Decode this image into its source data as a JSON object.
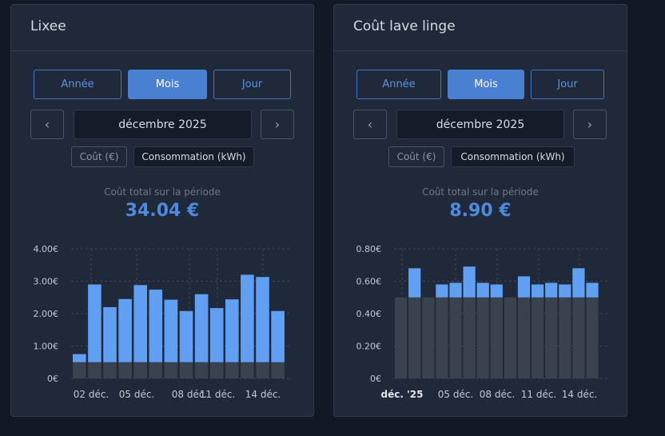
{
  "cards": [
    {
      "title": "Lixee",
      "range_buttons": [
        "Année",
        "Mois",
        "Jour"
      ],
      "active_range": "Mois",
      "prev_icon": "‹",
      "next_icon": "›",
      "month": "décembre 2025",
      "mode_buttons": [
        "Coût (€)",
        "Consommation (kWh)"
      ],
      "total_label": "Coût total sur la période",
      "total_value": "34.04 €",
      "chart_data": {
        "type": "bar",
        "stacked": true,
        "y_ticks": [
          "4.00€",
          "3.00€",
          "2.00€",
          "1.00€",
          "0€"
        ],
        "ylim": [
          0,
          4
        ],
        "x_tick_labels": [
          "02 déc.",
          "05 déc.",
          "08 déc.",
          "11 déc.",
          "14 déc."
        ],
        "x_tick_bold": [
          false,
          false,
          false,
          false,
          false
        ],
        "categories": [
          "02 déc.",
          "03 déc.",
          "04 déc.",
          "05 déc.",
          "06 déc.",
          "07 déc.",
          "08 déc.",
          "09 déc.",
          "10 déc.",
          "11 déc.",
          "12 déc.",
          "13 déc.",
          "14 déc.",
          "15 déc."
        ],
        "series": [
          {
            "color": "#39424e",
            "values": [
              0.5,
              0.5,
              0.5,
              0.5,
              0.5,
              0.5,
              0.5,
              0.5,
              0.5,
              0.5,
              0.5,
              0.5,
              0.5,
              0.5
            ]
          },
          {
            "color": "#619ff2",
            "values": [
              0.25,
              2.4,
              1.7,
              1.95,
              2.38,
              2.24,
              1.93,
              1.58,
              2.1,
              1.67,
              1.94,
              2.7,
              2.63,
              1.58
            ]
          }
        ],
        "grid": true
      }
    },
    {
      "title": "Coût lave linge",
      "range_buttons": [
        "Année",
        "Mois",
        "Jour"
      ],
      "active_range": "Mois",
      "prev_icon": "‹",
      "next_icon": "›",
      "month": "décembre 2025",
      "mode_buttons": [
        "Coût (€)",
        "Consommation (kWh)"
      ],
      "total_label": "Coût total sur la période",
      "total_value": "8.90 €",
      "chart_data": {
        "type": "bar",
        "stacked": true,
        "y_ticks": [
          "0.80€",
          "0.60€",
          "0.40€",
          "0.20€",
          "0€"
        ],
        "ylim": [
          0,
          0.8
        ],
        "x_tick_labels": [
          "déc. '25",
          "05 déc.",
          "08 déc.",
          "11 déc.",
          "14 déc."
        ],
        "x_tick_bold": [
          true,
          false,
          false,
          false,
          false
        ],
        "categories": [
          "01 déc.",
          "02 déc.",
          "03 déc.",
          "04 déc.",
          "05 déc.",
          "06 déc.",
          "07 déc.",
          "08 déc.",
          "09 déc.",
          "10 déc.",
          "11 déc.",
          "12 déc.",
          "13 déc.",
          "14 déc.",
          "15 déc."
        ],
        "series": [
          {
            "color": "#39424e",
            "values": [
              0.5,
              0.5,
              0.5,
              0.5,
              0.5,
              0.5,
              0.5,
              0.5,
              0.5,
              0.5,
              0.5,
              0.5,
              0.5,
              0.5,
              0.5
            ]
          },
          {
            "color": "#619ff2",
            "values": [
              0,
              0.18,
              0,
              0.08,
              0.09,
              0.19,
              0.09,
              0.08,
              0,
              0.13,
              0.08,
              0.09,
              0.08,
              0.18,
              0.09
            ]
          }
        ],
        "grid": true
      }
    }
  ]
}
